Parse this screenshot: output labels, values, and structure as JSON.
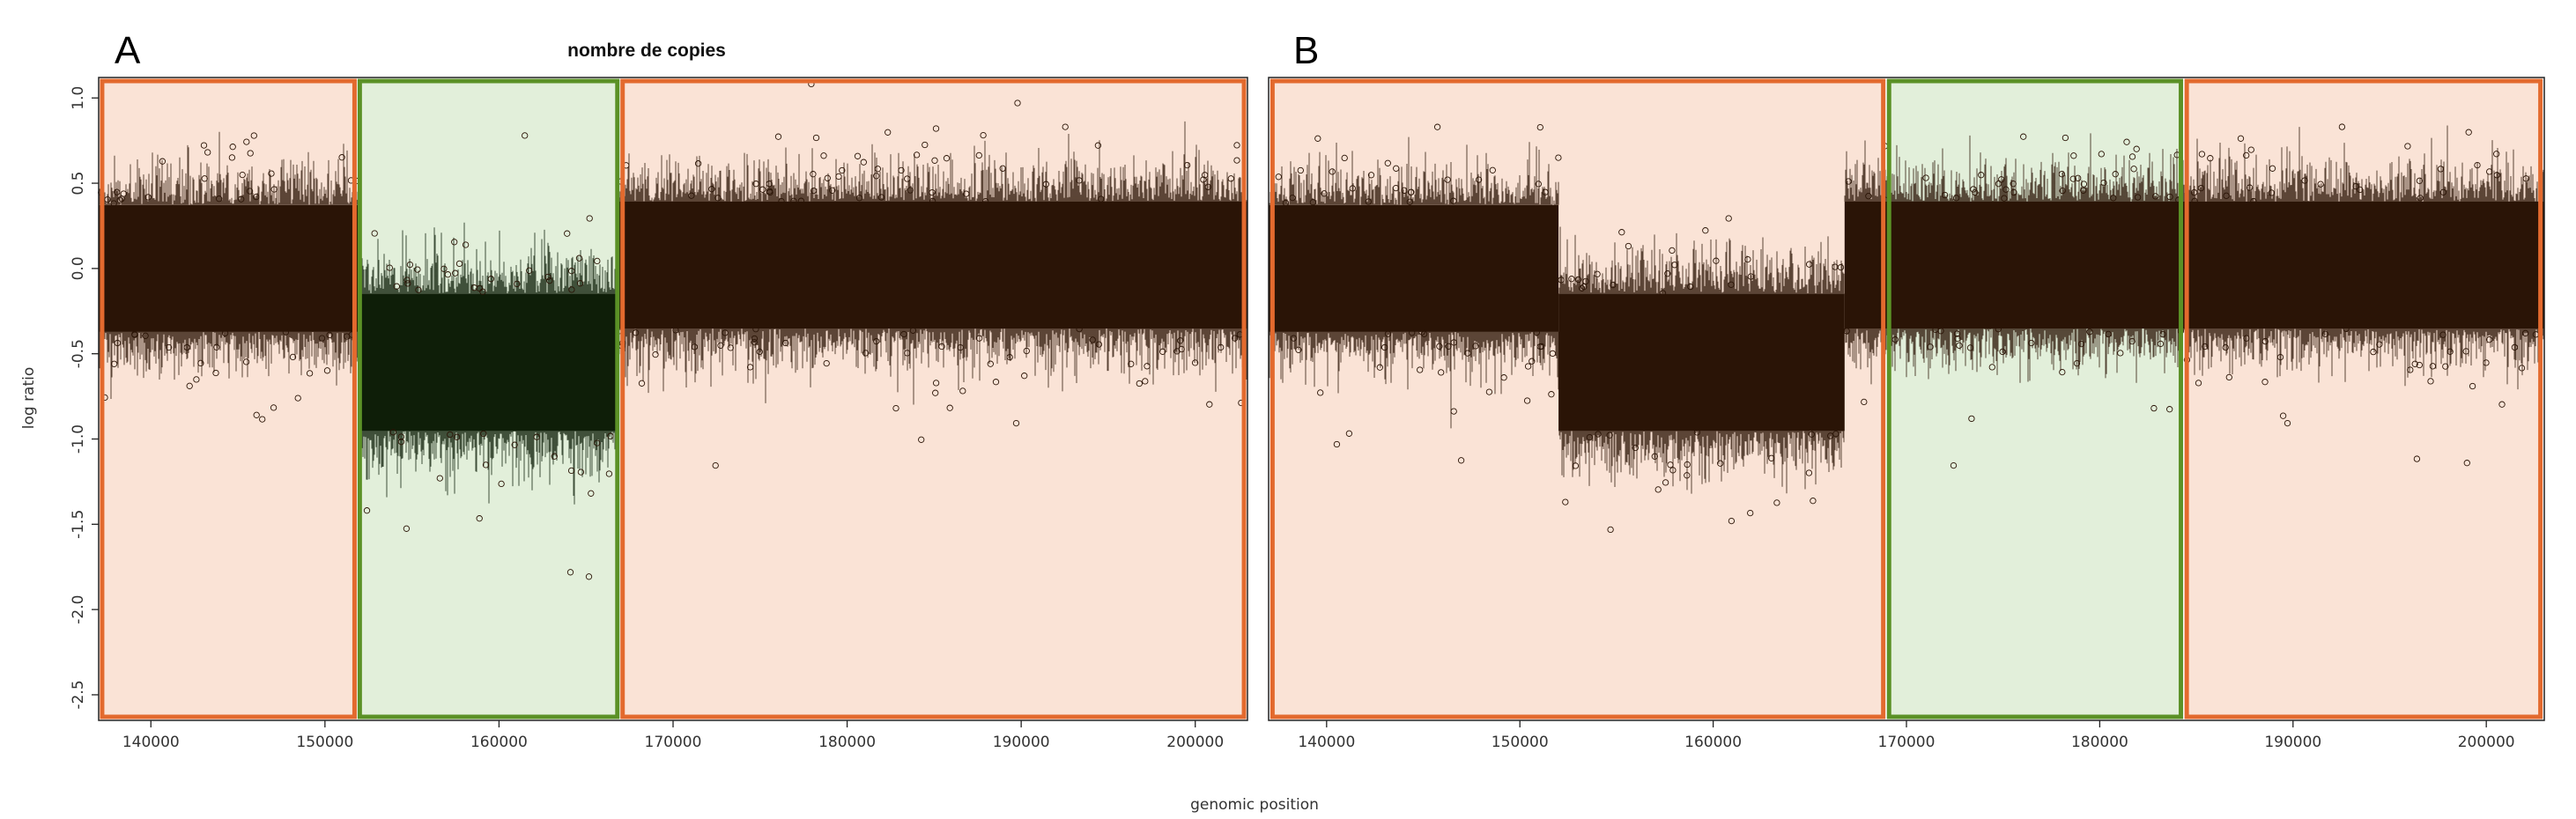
{
  "title": "nombre de copies",
  "xlabel": "genomic position",
  "ylabel": "log ratio",
  "colors": {
    "gain_region_fill": "#fae3d6",
    "gain_region_border": "#e36a2e",
    "loss_region_fill": "#e2efda",
    "loss_region_border": "#5b9126",
    "point_color": "#2a1406",
    "point_color_in_green": "#0e1e08"
  },
  "chart_data": [
    {
      "panel_label": "A",
      "type": "scatter",
      "xlim": [
        137000,
        203000
      ],
      "ylim": [
        -2.65,
        1.12
      ],
      "x_ticks": [
        140000,
        150000,
        160000,
        170000,
        180000,
        190000,
        200000
      ],
      "x_tick_labels": [
        "140000",
        "150000",
        "160000",
        "170000",
        "180000",
        "190000",
        "200000"
      ],
      "y_ticks": [
        1.0,
        0.5,
        0.0,
        -0.5,
        -1.0,
        -1.5,
        -2.0,
        -2.5
      ],
      "y_tick_labels": [
        "1.0",
        "0.5",
        "0.0",
        "-0.5",
        "-1.0",
        "-1.5",
        "-2.0",
        "-2.5"
      ],
      "regions": [
        {
          "x_start": 137200,
          "x_end": 151700,
          "color": "orange"
        },
        {
          "x_start": 152000,
          "x_end": 166800,
          "color": "green"
        },
        {
          "x_start": 167100,
          "x_end": 202800,
          "color": "orange"
        }
      ],
      "segments": [
        {
          "x_start": 137000,
          "x_end": 152000,
          "mean": 0.0,
          "sd": 0.24,
          "dense": true
        },
        {
          "x_start": 152000,
          "x_end": 166800,
          "mean": -0.55,
          "sd": 0.26,
          "dense": true
        },
        {
          "x_start": 166800,
          "x_end": 203000,
          "mean": 0.02,
          "sd": 0.24,
          "dense": true
        }
      ]
    },
    {
      "panel_label": "B",
      "type": "scatter",
      "xlim": [
        137000,
        203000
      ],
      "ylim": [
        -2.65,
        1.12
      ],
      "x_ticks": [
        140000,
        150000,
        160000,
        170000,
        180000,
        190000,
        200000
      ],
      "x_tick_labels": [
        "140000",
        "150000",
        "160000",
        "170000",
        "180000",
        "190000",
        "200000"
      ],
      "y_ticks": [
        1.0,
        0.5,
        0.0,
        -0.5,
        -1.0,
        -1.5,
        -2.0,
        -2.5
      ],
      "y_tick_labels": [
        "1.0",
        "0.5",
        "0.0",
        "-0.5",
        "-1.0",
        "-1.5",
        "-2.0",
        "-2.5"
      ],
      "regions": [
        {
          "x_start": 137200,
          "x_end": 168800,
          "color": "orange"
        },
        {
          "x_start": 169100,
          "x_end": 184200,
          "color": "green"
        },
        {
          "x_start": 184500,
          "x_end": 202800,
          "color": "orange"
        }
      ],
      "segments": [
        {
          "x_start": 137000,
          "x_end": 152000,
          "mean": 0.0,
          "sd": 0.24,
          "dense": true
        },
        {
          "x_start": 152000,
          "x_end": 166800,
          "mean": -0.55,
          "sd": 0.26,
          "dense": true
        },
        {
          "x_start": 166800,
          "x_end": 203000,
          "mean": 0.02,
          "sd": 0.24,
          "dense": true
        }
      ]
    }
  ]
}
